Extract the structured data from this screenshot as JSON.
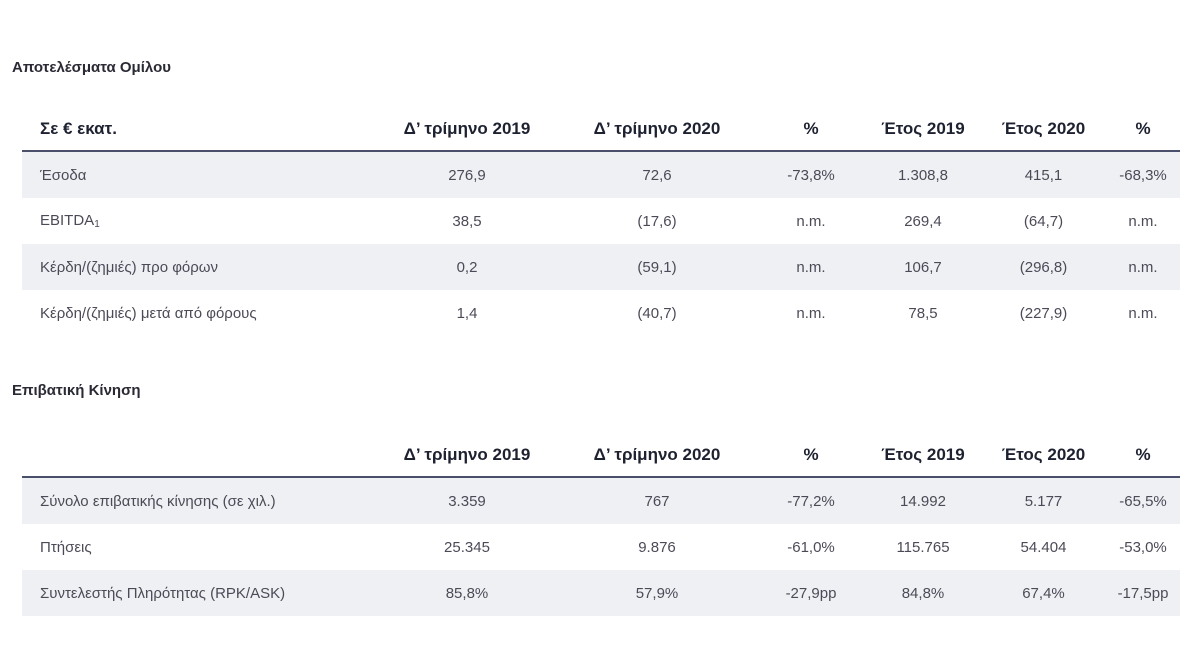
{
  "group_results": {
    "title": "Αποτελέσματα Ομίλου",
    "headers": [
      "Σε € εκατ.",
      "Δ’ τρίμηνο 2019",
      "Δ’ τρίμηνο 2020",
      "%",
      "Έτος 2019",
      "Έτος 2020",
      "%"
    ],
    "rows": [
      {
        "label": "Έσοδα",
        "footnote": "",
        "values": [
          "276,9",
          "72,6",
          "-73,8%",
          "1.308,8",
          "415,1",
          "-68,3%"
        ]
      },
      {
        "label": "EBITDA",
        "footnote": "1",
        "values": [
          "38,5",
          "(17,6)",
          "n.m.",
          "269,4",
          "(64,7)",
          "n.m."
        ]
      },
      {
        "label": "Κέρδη/(ζημιές) προ φόρων",
        "footnote": "",
        "values": [
          "0,2",
          "(59,1)",
          "n.m.",
          "106,7",
          "(296,8)",
          "n.m."
        ]
      },
      {
        "label": "Κέρδη/(ζημιές) μετά από φόρους",
        "footnote": "",
        "values": [
          "1,4",
          "(40,7)",
          "n.m.",
          "78,5",
          "(227,9)",
          "n.m."
        ]
      }
    ]
  },
  "passenger_traffic": {
    "title": "Επιβατική Κίνηση",
    "headers": [
      "",
      "Δ’ τρίμηνο 2019",
      "Δ’ τρίμηνο 2020",
      "%",
      "Έτος 2019",
      "Έτος 2020",
      "%"
    ],
    "rows": [
      {
        "label": "Σύνολο επιβατικής κίνησης (σε χιλ.)",
        "values": [
          "3.359",
          "767",
          "-77,2%",
          "14.992",
          "5.177",
          "-65,5%"
        ]
      },
      {
        "label": "Πτήσεις",
        "values": [
          "25.345",
          "9.876",
          "-61,0%",
          "115.765",
          "54.404",
          "-53,0%"
        ]
      },
      {
        "label": "Συντελεστής Πληρότητας (RPK/ASK)",
        "values": [
          "85,8%",
          "57,9%",
          "-27,9pp",
          "84,8%",
          "67,4%",
          "-17,5pp"
        ]
      }
    ]
  },
  "colors": {
    "row_shade": "#eef0f4",
    "header_rule": "#4a4f6c",
    "title_text": "#2a2a35"
  }
}
